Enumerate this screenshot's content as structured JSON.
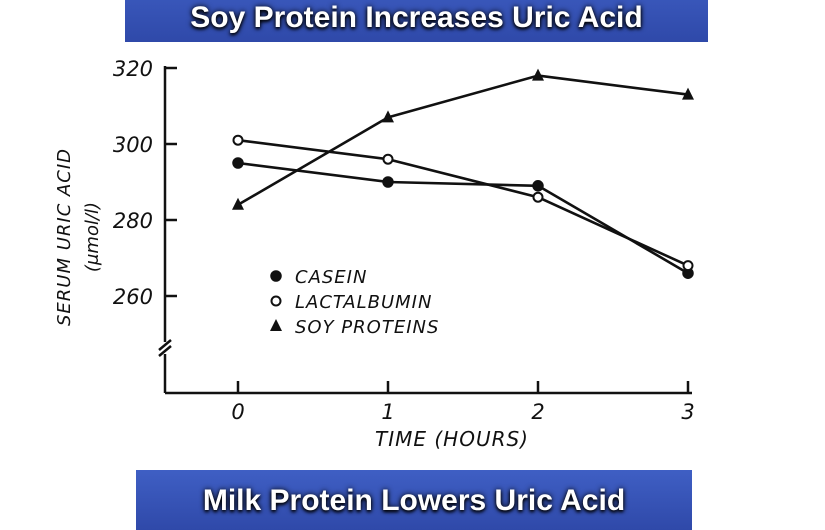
{
  "banners": {
    "top": "Soy Protein Increases Uric Acid",
    "bottom": "Milk Protein Lowers Uric Acid"
  },
  "colors": {
    "banner": "#3556b8",
    "ink": "#111111"
  },
  "chart_data": {
    "type": "line",
    "x": [
      0,
      1,
      2,
      3
    ],
    "xlabel": "TIME (HOURS)",
    "ylabel": "SERUM URIC ACID",
    "ylabel_unit": "(μmol/l)",
    "ylim": [
      240,
      320
    ],
    "yticks": [
      260,
      280,
      300,
      320
    ],
    "xticks": [
      0,
      1,
      2,
      3
    ],
    "axis_break": true,
    "legend_position": "lower-left",
    "series": [
      {
        "name": "CASEIN",
        "marker": "filled-circle",
        "values": [
          295,
          290,
          289,
          266
        ]
      },
      {
        "name": "LACTALBUMIN",
        "marker": "open-circle",
        "values": [
          301,
          296,
          286,
          268
        ]
      },
      {
        "name": "SOY PROTEINS",
        "marker": "filled-triangle",
        "values": [
          284,
          307,
          318,
          313
        ]
      }
    ]
  }
}
